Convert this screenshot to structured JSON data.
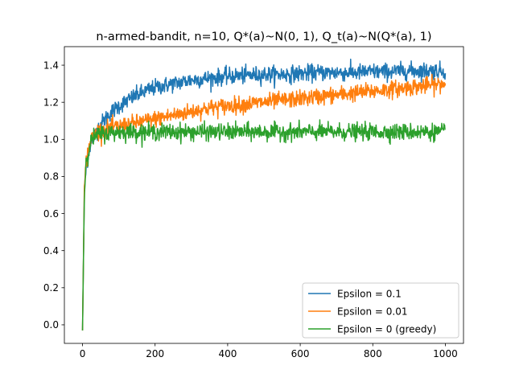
{
  "chart_data": {
    "type": "line",
    "title": "n-armed-bandit, n=10, Q*(a)~N(0, 1), Q_t(a)~N(Q*(a), 1)",
    "xlabel": "",
    "ylabel": "",
    "xlim": [
      -50,
      1050
    ],
    "ylim": [
      -0.1,
      1.5
    ],
    "xticks": [
      0,
      200,
      400,
      600,
      800,
      1000
    ],
    "xtick_labels": [
      "0",
      "200",
      "400",
      "600",
      "800",
      "1000"
    ],
    "yticks": [
      0.0,
      0.2,
      0.4,
      0.6,
      0.8,
      1.0,
      1.2,
      1.4
    ],
    "ytick_labels": [
      "0.0",
      "0.2",
      "0.4",
      "0.6",
      "0.8",
      "1.0",
      "1.2",
      "1.4"
    ],
    "grid": false,
    "legend_position": "lower-right",
    "series": [
      {
        "name": "Epsilon = 0.1",
        "color": "#1f77b4",
        "x": [
          0,
          5,
          10,
          20,
          30,
          40,
          50,
          75,
          100,
          150,
          200,
          250,
          300,
          350,
          400,
          450,
          500,
          550,
          600,
          650,
          700,
          750,
          800,
          850,
          900,
          950,
          1000
        ],
        "values": [
          -0.03,
          0.7,
          0.85,
          0.96,
          1.01,
          1.05,
          1.08,
          1.14,
          1.18,
          1.24,
          1.28,
          1.3,
          1.32,
          1.33,
          1.34,
          1.345,
          1.35,
          1.35,
          1.355,
          1.36,
          1.36,
          1.36,
          1.365,
          1.365,
          1.37,
          1.37,
          1.37
        ]
      },
      {
        "name": "Epsilon = 0.01",
        "color": "#ff7f0e",
        "x": [
          0,
          5,
          10,
          20,
          30,
          40,
          50,
          75,
          100,
          150,
          200,
          250,
          300,
          350,
          400,
          450,
          500,
          550,
          600,
          650,
          700,
          750,
          800,
          850,
          900,
          950,
          1000
        ],
        "values": [
          -0.03,
          0.72,
          0.88,
          0.98,
          1.02,
          1.04,
          1.05,
          1.06,
          1.07,
          1.09,
          1.11,
          1.13,
          1.15,
          1.17,
          1.18,
          1.19,
          1.2,
          1.21,
          1.22,
          1.23,
          1.24,
          1.25,
          1.26,
          1.27,
          1.28,
          1.29,
          1.3
        ]
      },
      {
        "name": "Epsilon = 0 (greedy)",
        "color": "#2ca02c",
        "x": [
          0,
          5,
          10,
          20,
          30,
          40,
          50,
          75,
          100,
          150,
          200,
          250,
          300,
          350,
          400,
          450,
          500,
          550,
          600,
          650,
          700,
          750,
          800,
          850,
          900,
          950,
          1000
        ],
        "values": [
          -0.03,
          0.7,
          0.88,
          0.97,
          1.01,
          1.02,
          1.03,
          1.035,
          1.04,
          1.04,
          1.04,
          1.04,
          1.04,
          1.04,
          1.04,
          1.04,
          1.04,
          1.04,
          1.04,
          1.04,
          1.04,
          1.04,
          1.04,
          1.04,
          1.04,
          1.04,
          1.04
        ]
      }
    ]
  }
}
